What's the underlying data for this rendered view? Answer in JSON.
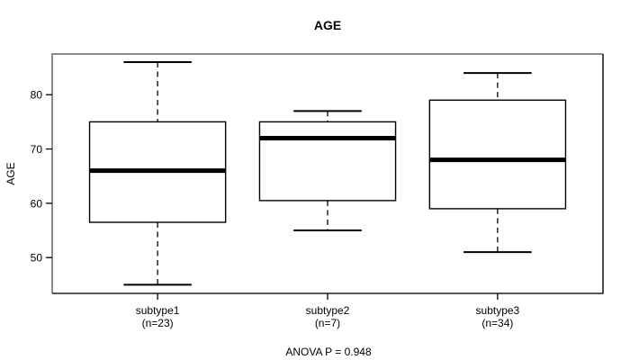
{
  "chart_data": {
    "type": "boxplot",
    "title": "AGE",
    "ylabel": "AGE",
    "xlabel": "",
    "footnote": "ANOVA P = 0.948",
    "ylim": [
      43.4,
      87.5
    ],
    "yticks": [
      50,
      60,
      70,
      80
    ],
    "grid": false,
    "legend": "none",
    "groups": [
      {
        "label": "subtype1",
        "n_label": "(n=23)",
        "n": 23,
        "min": 45,
        "q1": 56.5,
        "median": 66,
        "q3": 75,
        "max": 86
      },
      {
        "label": "subtype2",
        "n_label": "(n=7)",
        "n": 7,
        "min": 55,
        "q1": 60.5,
        "median": 72,
        "q3": 75,
        "max": 77
      },
      {
        "label": "subtype3",
        "n_label": "(n=34)",
        "n": 34,
        "min": 51,
        "q1": 59,
        "median": 68,
        "q3": 79,
        "max": 84
      }
    ],
    "colors": {
      "line": "#000000",
      "box_fill": "#ffffff",
      "frame_top_left": "#8c8c8c",
      "frame_bottom_right": "#222222",
      "background": "#ffffff"
    }
  }
}
